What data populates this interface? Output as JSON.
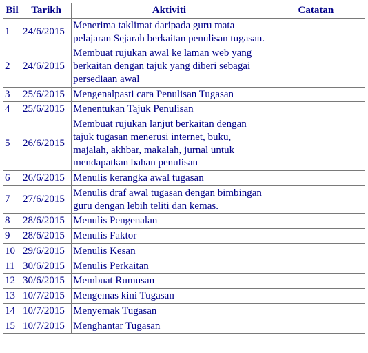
{
  "table": {
    "columns": [
      "Bil",
      "Tarikh",
      "Aktiviti",
      "Catatan"
    ],
    "rows": [
      {
        "bil": "1",
        "tarikh": "24/6/2015",
        "aktiviti": "Menerima taklimat daripada guru mata pelajaran Sejarah berkaitan penulisan tugasan.",
        "catatan": ""
      },
      {
        "bil": "2",
        "tarikh": "24/6/2015",
        "aktiviti": "Membuat rujukan awal ke laman web yang berkaitan dengan tajuk yang diberi sebagai persediaan awal",
        "catatan": ""
      },
      {
        "bil": "3",
        "tarikh": "25/6/2015",
        "aktiviti": "Mengenalpasti cara Penulisan Tugasan",
        "catatan": ""
      },
      {
        "bil": "4",
        "tarikh": "25/6/2015",
        "aktiviti": "Menentukan Tajuk Penulisan",
        "catatan": ""
      },
      {
        "bil": "5",
        "tarikh": "26/6/2015",
        "aktiviti": "Membuat rujukan lanjut berkaitan dengan tajuk tugasan menerusi internet, buku, majalah, akhbar, makalah, jurnal untuk mendapatkan bahan penulisan",
        "catatan": ""
      },
      {
        "bil": "6",
        "tarikh": "26/6/2015",
        "aktiviti": "Menulis kerangka awal tugasan",
        "catatan": ""
      },
      {
        "bil": "7",
        "tarikh": "27/6/2015",
        "aktiviti": "Menulis draf awal tugasan dengan bimbingan guru dengan lebih teliti dan kemas.",
        "catatan": ""
      },
      {
        "bil": "8",
        "tarikh": "28/6/2015",
        "aktiviti": "Menulis Pengenalan",
        "catatan": ""
      },
      {
        "bil": "9",
        "tarikh": "28/6/2015",
        "aktiviti": "Menulis Faktor",
        "catatan": ""
      },
      {
        "bil": "10",
        "tarikh": "29/6/2015",
        "aktiviti": "Menulis Kesan",
        "catatan": ""
      },
      {
        "bil": "11",
        "tarikh": "30/6/2015",
        "aktiviti": "Menulis Perkaitan",
        "catatan": ""
      },
      {
        "bil": "12",
        "tarikh": "30/6/2015",
        "aktiviti": "Membuat Rumusan",
        "catatan": ""
      },
      {
        "bil": "13",
        "tarikh": "10/7/2015",
        "aktiviti": "Mengemas kini Tugasan",
        "catatan": ""
      },
      {
        "bil": "14",
        "tarikh": "10/7/2015",
        "aktiviti": "Menyemak Tugasan",
        "catatan": ""
      },
      {
        "bil": "15",
        "tarikh": "10/7/2015",
        "aktiviti": "Menghantar Tugasan",
        "catatan": ""
      }
    ]
  }
}
